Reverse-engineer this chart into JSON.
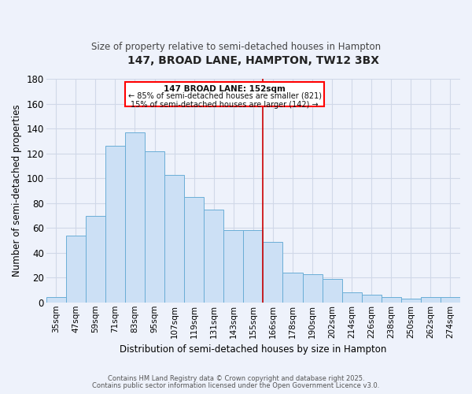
{
  "title": "147, BROAD LANE, HAMPTON, TW12 3BX",
  "subtitle": "Size of property relative to semi-detached houses in Hampton",
  "xlabel": "Distribution of semi-detached houses by size in Hampton",
  "ylabel": "Number of semi-detached properties",
  "bar_labels": [
    "35sqm",
    "47sqm",
    "59sqm",
    "71sqm",
    "83sqm",
    "95sqm",
    "107sqm",
    "119sqm",
    "131sqm",
    "143sqm",
    "155sqm",
    "166sqm",
    "178sqm",
    "190sqm",
    "202sqm",
    "214sqm",
    "226sqm",
    "238sqm",
    "250sqm",
    "262sqm",
    "274sqm"
  ],
  "bar_heights": [
    4,
    54,
    70,
    126,
    137,
    122,
    103,
    85,
    75,
    58,
    58,
    49,
    24,
    23,
    19,
    8,
    6,
    4,
    3,
    4,
    4
  ],
  "bar_color": "#cce0f5",
  "bar_edge_color": "#6aaed6",
  "annotation_title": "147 BROAD LANE: 152sqm",
  "annotation_line1": "← 85% of semi-detached houses are smaller (821)",
  "annotation_line2": "15% of semi-detached houses are larger (142) →",
  "vline_x_bar": 10,
  "ylim": [
    0,
    180
  ],
  "yticks": [
    0,
    20,
    40,
    60,
    80,
    100,
    120,
    140,
    160,
    180
  ],
  "background_color": "#eef2fb",
  "grid_color": "#d0d8e8",
  "footer1": "Contains HM Land Registry data © Crown copyright and database right 2025.",
  "footer2": "Contains public sector information licensed under the Open Government Licence v3.0."
}
